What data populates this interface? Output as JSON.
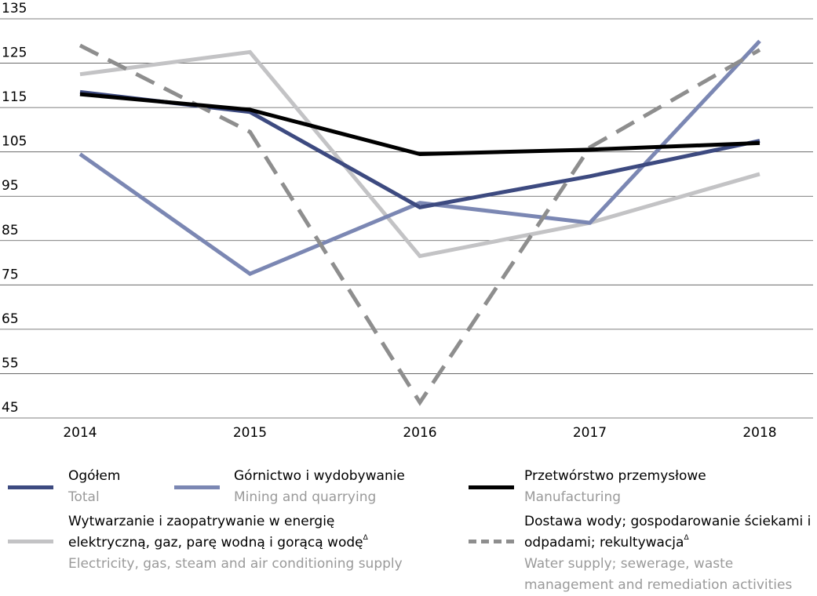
{
  "chart_data": {
    "type": "line",
    "categories": [
      "2014",
      "2015",
      "2016",
      "2017",
      "2018"
    ],
    "series": [
      {
        "name": "Ogółem",
        "name_en": "Total",
        "color": "#3d4a80",
        "dashed": false,
        "values": [
          118.5,
          114,
          92.5,
          99.5,
          107.5
        ]
      },
      {
        "name": "Górnictwo i wydobywanie",
        "name_en": "Mining and quarrying",
        "color": "#7b87b3",
        "dashed": false,
        "values": [
          104.5,
          77.5,
          93.5,
          89,
          130
        ]
      },
      {
        "name": "Przetwórstwo przemysłowe",
        "name_en": "Manufacturing",
        "color": "#000000",
        "dashed": false,
        "values": [
          118,
          114.5,
          104.5,
          105.5,
          107
        ]
      },
      {
        "name": "Wytwarzanie i zaopatrywanie w energię elektryczną, gaz, parę wodną i gorącą wodę",
        "mark": "Δ",
        "name_en": "Electricity, gas, steam and air conditioning supply",
        "color": "#c3c3c5",
        "dashed": false,
        "values": [
          122.5,
          127.5,
          81.5,
          89,
          100
        ]
      },
      {
        "name": "Dostawa wody; gospodarowanie ściekami i odpadami; rekultywacja",
        "mark": "Δ",
        "name_en": "Water supply; sewerage, waste management and remediation activities",
        "color": "#8e8e8e",
        "dashed": true,
        "values": [
          129,
          109.5,
          48.5,
          106,
          128
        ]
      }
    ],
    "ylim": [
      45,
      135
    ],
    "yticks": [
      45,
      55,
      65,
      75,
      85,
      95,
      105,
      115,
      125,
      135
    ],
    "grid": true
  }
}
